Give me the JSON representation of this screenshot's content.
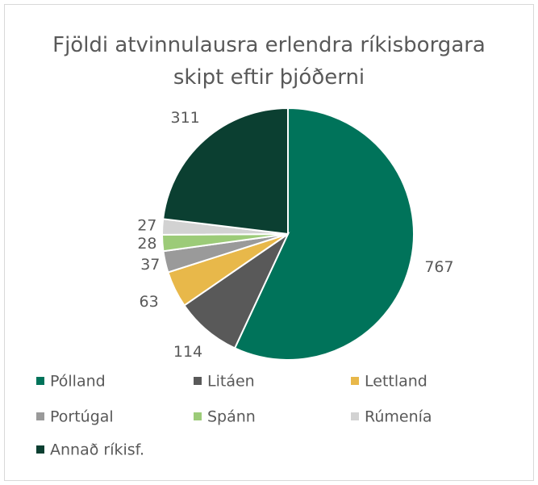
{
  "chart_data": {
    "type": "pie",
    "title": "Fjöldi atvinnulausra erlendra ríkisborgara skipt eftir þjóðerni",
    "categories": [
      "Pólland",
      "Litáen",
      "Lettland",
      "Portúgal",
      "Spánn",
      "Rúmenía",
      "Annað ríkisf."
    ],
    "values": [
      767,
      114,
      63,
      37,
      28,
      27,
      311
    ],
    "colors": [
      "#00735a",
      "#595959",
      "#e8b84a",
      "#9a9a9a",
      "#9ccb78",
      "#d2d2d2",
      "#0b3f31"
    ],
    "legend": "bottom"
  }
}
